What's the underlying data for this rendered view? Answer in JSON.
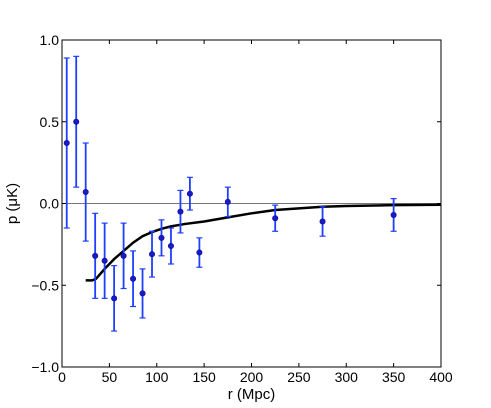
{
  "chart_data": {
    "type": "scatter",
    "xlabel": "r (Mpc)",
    "ylabel": "p (μK)",
    "xlim": [
      0,
      400
    ],
    "ylim": [
      -1.0,
      1.0
    ],
    "xticks": [
      0,
      50,
      100,
      150,
      200,
      250,
      300,
      350,
      400
    ],
    "yticks": [
      -1.0,
      -0.5,
      0.0,
      0.5,
      1.0
    ],
    "xtick_labels": [
      "0",
      "50",
      "100",
      "150",
      "200",
      "250",
      "300",
      "350",
      "400"
    ],
    "ytick_labels": [
      "−1.0",
      "−0.5",
      "0.0",
      "0.5",
      "1.0"
    ],
    "grid": false,
    "zero_line": true,
    "colors": {
      "points": "#1a1acc",
      "errorbars": "#1f3fff",
      "model": "#000000",
      "zero_line": "#777777"
    },
    "series": [
      {
        "kind": "errorbar",
        "points": [
          {
            "x": 5,
            "y": 0.37,
            "err": 0.52
          },
          {
            "x": 15,
            "y": 0.5,
            "err": 0.4
          },
          {
            "x": 25,
            "y": 0.07,
            "err": 0.3
          },
          {
            "x": 35,
            "y": -0.32,
            "err": 0.26
          },
          {
            "x": 45,
            "y": -0.35,
            "err": 0.23
          },
          {
            "x": 55,
            "y": -0.58,
            "err": 0.2
          },
          {
            "x": 65,
            "y": -0.32,
            "err": 0.2
          },
          {
            "x": 75,
            "y": -0.46,
            "err": 0.17
          },
          {
            "x": 85,
            "y": -0.55,
            "err": 0.15
          },
          {
            "x": 95,
            "y": -0.31,
            "err": 0.14
          },
          {
            "x": 105,
            "y": -0.21,
            "err": 0.11
          },
          {
            "x": 115,
            "y": -0.26,
            "err": 0.11
          },
          {
            "x": 125,
            "y": -0.05,
            "err": 0.13
          },
          {
            "x": 135,
            "y": 0.06,
            "err": 0.1
          },
          {
            "x": 145,
            "y": -0.3,
            "err": 0.09
          },
          {
            "x": 175,
            "y": 0.01,
            "err": 0.09
          },
          {
            "x": 225,
            "y": -0.09,
            "err": 0.08
          },
          {
            "x": 275,
            "y": -0.11,
            "err": 0.09
          },
          {
            "x": 350,
            "y": -0.07,
            "err": 0.1
          }
        ]
      },
      {
        "kind": "line",
        "points": [
          {
            "x": 25,
            "y": -0.47
          },
          {
            "x": 32,
            "y": -0.47
          },
          {
            "x": 36,
            "y": -0.46
          },
          {
            "x": 45,
            "y": -0.4
          },
          {
            "x": 55,
            "y": -0.34
          },
          {
            "x": 65,
            "y": -0.29
          },
          {
            "x": 75,
            "y": -0.24
          },
          {
            "x": 85,
            "y": -0.2
          },
          {
            "x": 95,
            "y": -0.175
          },
          {
            "x": 105,
            "y": -0.155
          },
          {
            "x": 115,
            "y": -0.14
          },
          {
            "x": 130,
            "y": -0.125
          },
          {
            "x": 150,
            "y": -0.11
          },
          {
            "x": 175,
            "y": -0.085
          },
          {
            "x": 200,
            "y": -0.06
          },
          {
            "x": 225,
            "y": -0.04
          },
          {
            "x": 250,
            "y": -0.03
          },
          {
            "x": 275,
            "y": -0.02
          },
          {
            "x": 300,
            "y": -0.015
          },
          {
            "x": 350,
            "y": -0.01
          },
          {
            "x": 400,
            "y": -0.008
          }
        ]
      }
    ]
  }
}
